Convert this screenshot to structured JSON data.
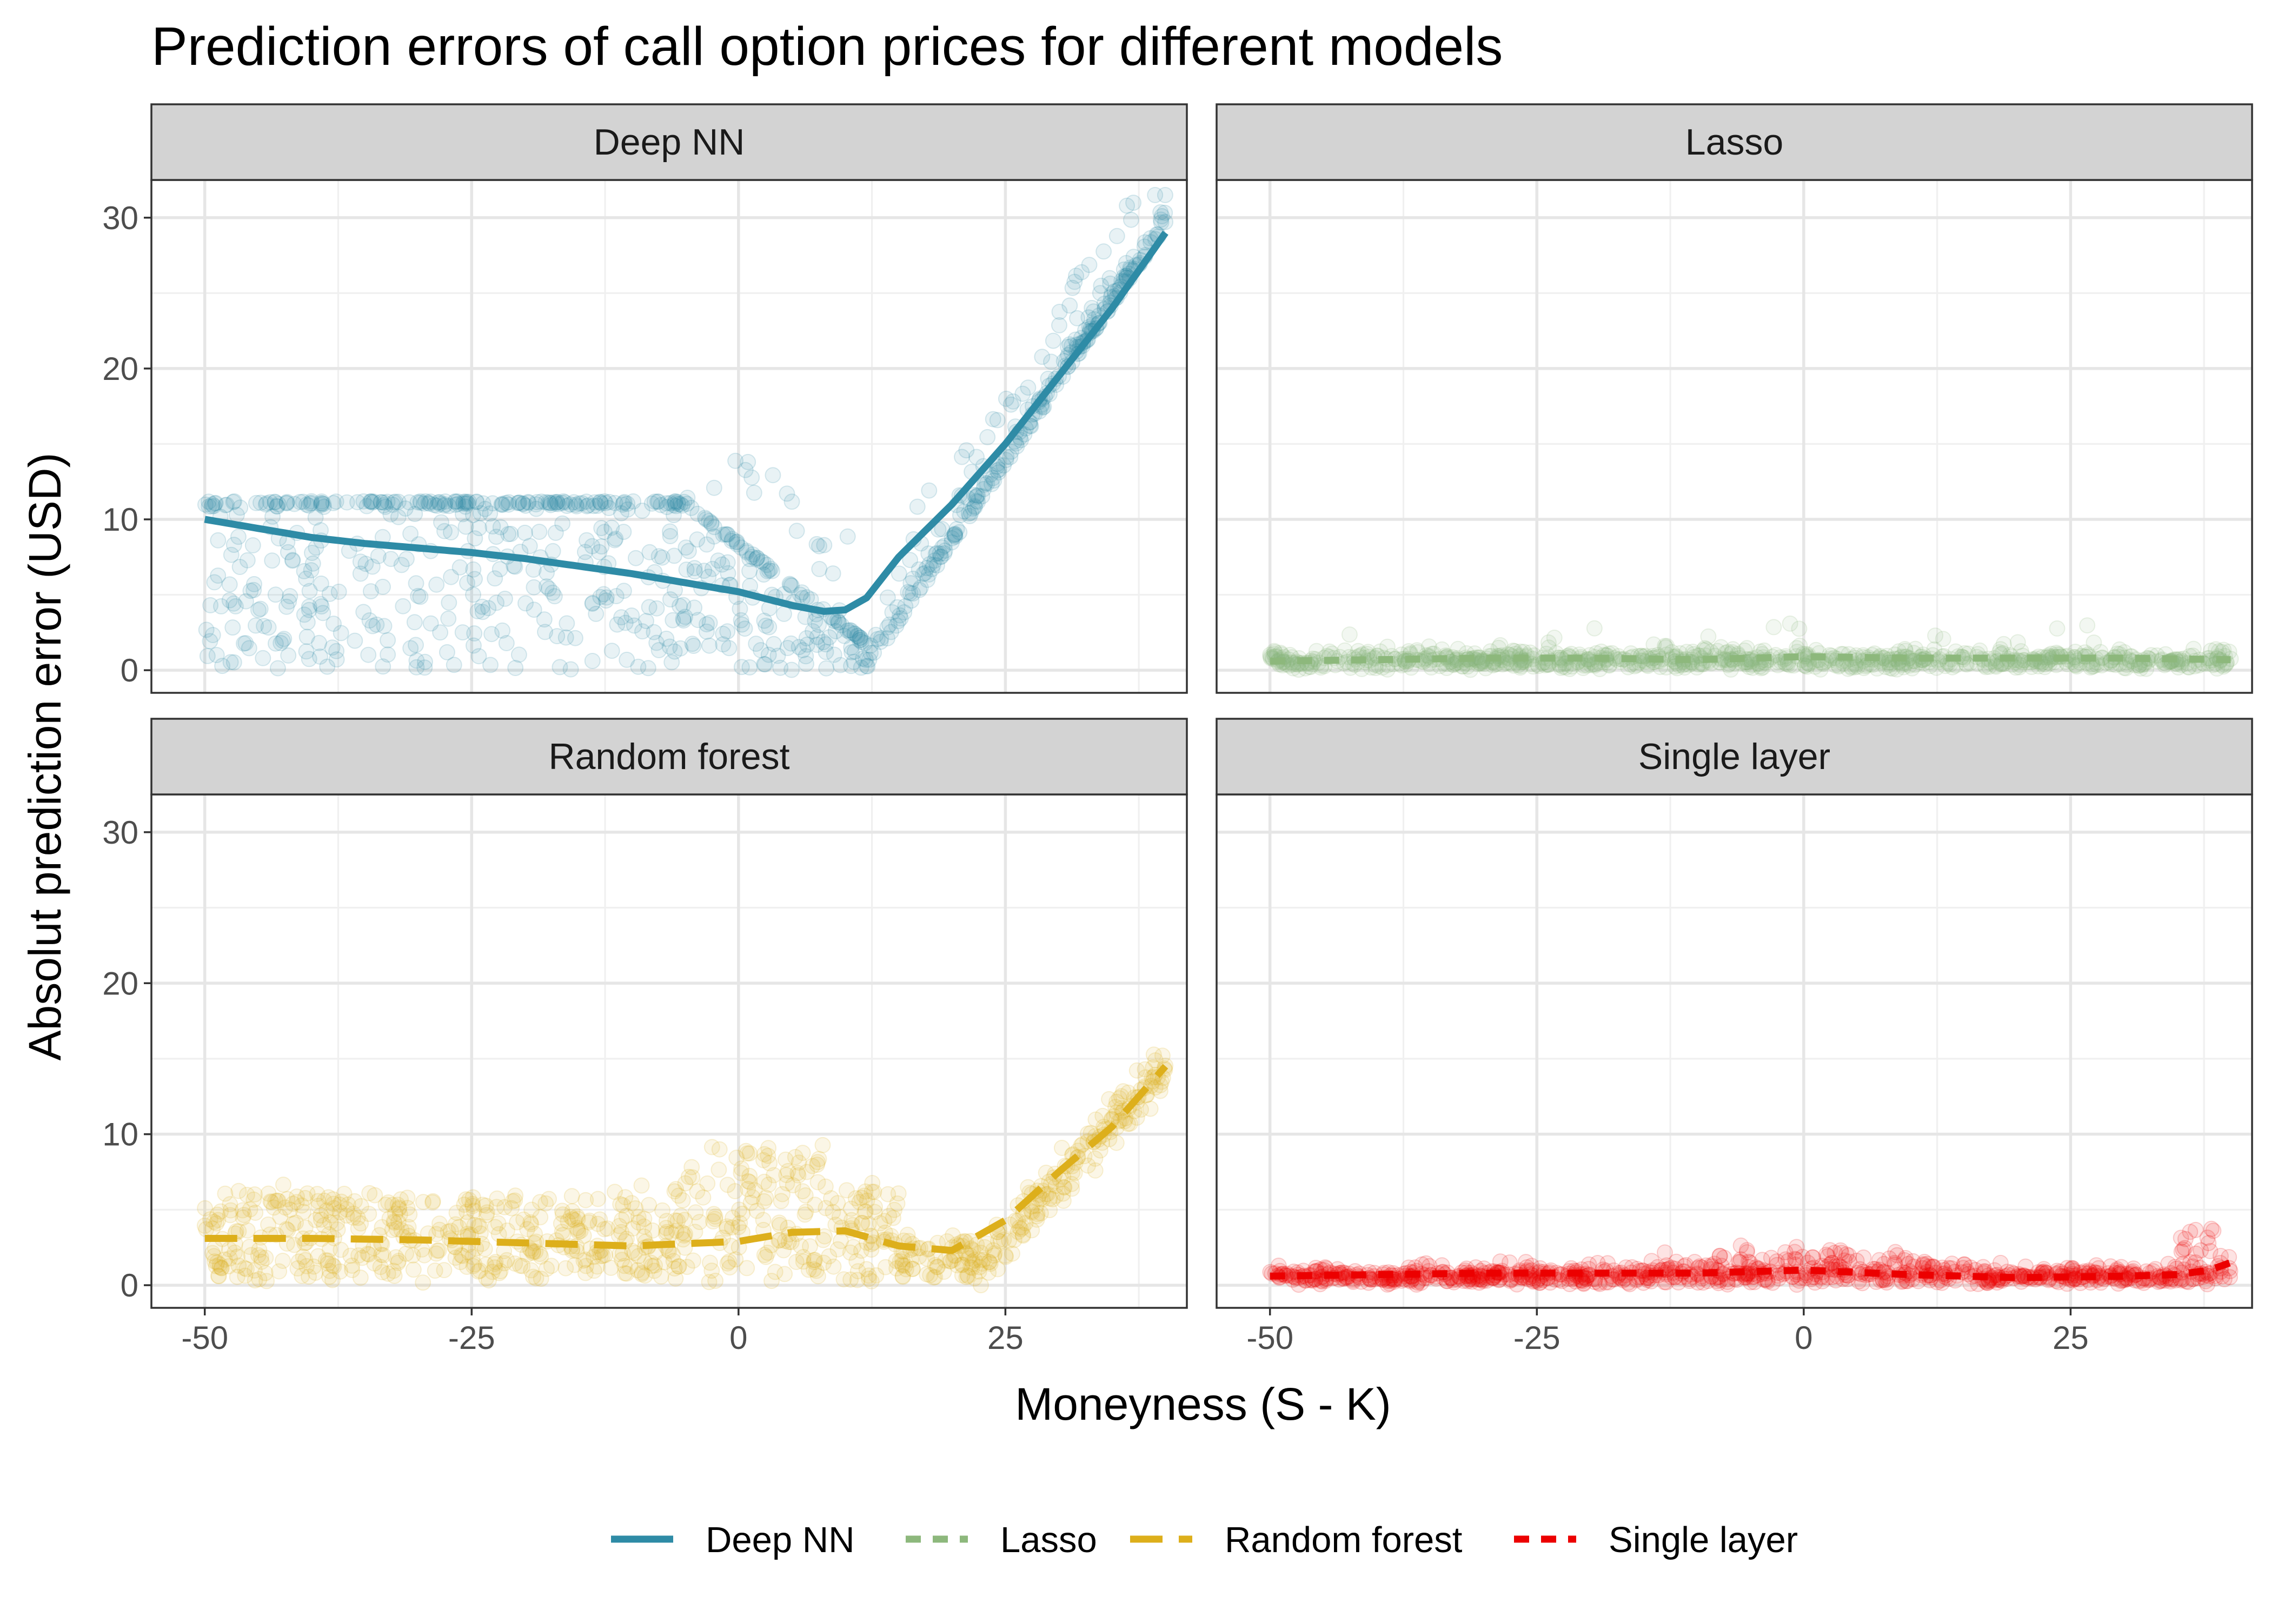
{
  "chart_data": {
    "type": "scatter",
    "title": "Prediction errors of call option prices for different models",
    "xlabel": "Moneyness (S - K)",
    "ylabel": "Absolut prediction error (USD)",
    "xlim": [
      -55,
      42
    ],
    "ylim": [
      -1.5,
      32.5
    ],
    "x_ticks": [
      -50,
      -25,
      0,
      25
    ],
    "x_tick_labels": [
      "-50",
      "-25",
      "0",
      "25"
    ],
    "y_ticks": [
      0,
      10,
      20,
      30
    ],
    "y_tick_labels": [
      "0",
      "10",
      "20",
      "30"
    ],
    "grid": true,
    "legend_position": "bottom",
    "facets": [
      {
        "name": "Deep NN",
        "color": "#2e8ba6",
        "linetype": "solid",
        "smooth": {
          "x": [
            -50,
            -45,
            -40,
            -35,
            -30,
            -25,
            -20,
            -15,
            -10,
            -5,
            0,
            5,
            8,
            10,
            12,
            15,
            20,
            25,
            30,
            35,
            40
          ],
          "y": [
            10.0,
            9.4,
            8.8,
            8.4,
            8.1,
            7.8,
            7.4,
            6.9,
            6.4,
            5.8,
            5.2,
            4.3,
            3.9,
            4.0,
            4.8,
            7.5,
            11.0,
            15.0,
            19.5,
            24.0,
            29.0
          ]
        },
        "scatter": {
          "description": "Errors plateau near 11 for deep out-of-the-money options, spread 0-11; near zero around x=10-15; rise linearly to about 31 at x=40"
        }
      },
      {
        "name": "Lasso",
        "color": "#8db87c",
        "linetype": "dashed",
        "smooth": {
          "x": [
            -50,
            -40,
            -30,
            -20,
            -10,
            0,
            10,
            20,
            30,
            40
          ],
          "y": [
            0.6,
            0.7,
            0.8,
            0.8,
            0.7,
            0.9,
            0.8,
            0.8,
            0.8,
            0.7
          ]
        },
        "scatter": {
          "description": "Errors concentrated between 0 and 3 across all moneyness, occasional points to about 4.5"
        }
      },
      {
        "name": "Random forest",
        "color": "#ddaf1b",
        "linetype": "longdash",
        "smooth": {
          "x": [
            -50,
            -40,
            -30,
            -20,
            -10,
            0,
            5,
            10,
            15,
            20,
            25,
            30,
            35,
            40
          ],
          "y": [
            3.1,
            3.1,
            3.0,
            2.8,
            2.6,
            2.9,
            3.5,
            3.6,
            2.6,
            2.3,
            4.3,
            7.5,
            10.5,
            14.5
          ]
        },
        "scatter": {
          "description": "Errors spread 0-8 for x<0, spike to about 11 near x=0-10, drop near x=20, rise to about 16 at x=40"
        }
      },
      {
        "name": "Single layer",
        "color": "#ec0000",
        "linetype": "dashed",
        "smooth": {
          "x": [
            -50,
            -40,
            -30,
            -20,
            -10,
            0,
            10,
            20,
            30,
            35,
            38,
            40
          ],
          "y": [
            0.6,
            0.7,
            0.8,
            0.8,
            0.8,
            1.0,
            0.7,
            0.5,
            0.6,
            0.7,
            1.0,
            1.5
          ]
        },
        "scatter": {
          "description": "Errors mostly 0-2, a bump up to about 4 near x=0, occasional points to about 5 near x=40"
        }
      }
    ],
    "legend": [
      {
        "label": "Deep NN",
        "color": "#2e8ba6",
        "linetype": "solid"
      },
      {
        "label": "Lasso",
        "color": "#8db87c",
        "linetype": "dashed"
      },
      {
        "label": "Random forest",
        "color": "#ddaf1b",
        "linetype": "longdash"
      },
      {
        "label": "Single layer",
        "color": "#ec0000",
        "linetype": "dashed"
      }
    ]
  }
}
